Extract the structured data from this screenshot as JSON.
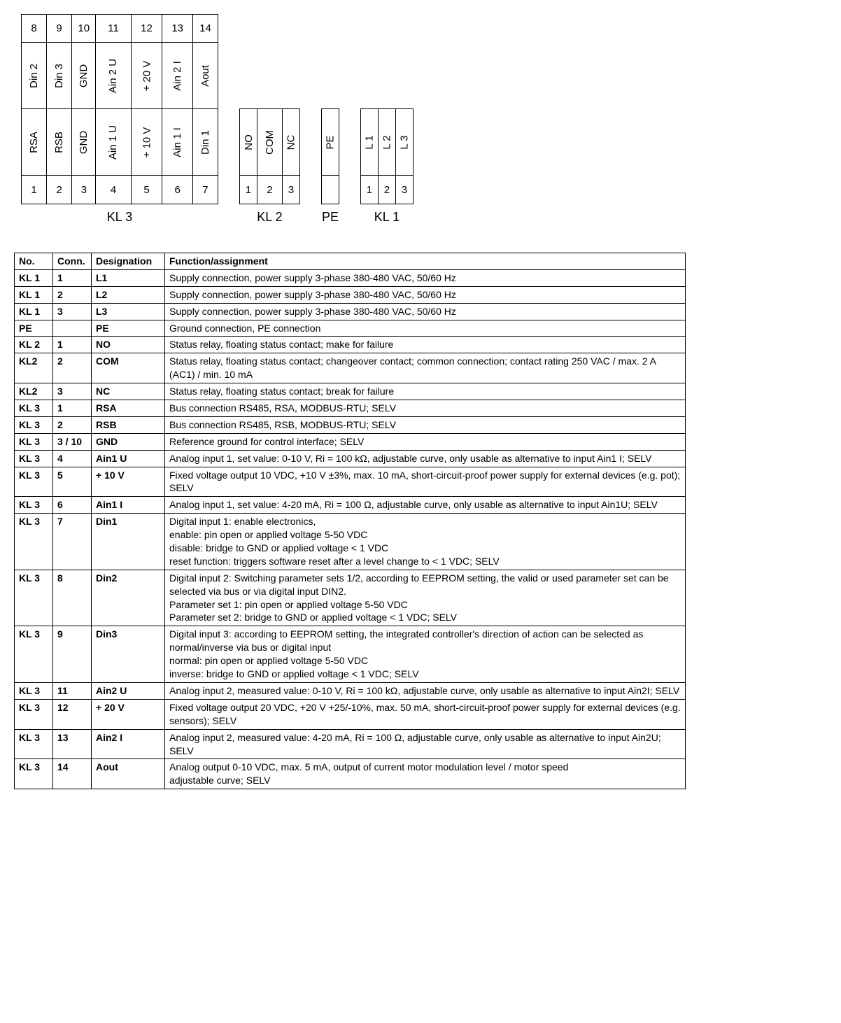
{
  "diagram": {
    "kl3": {
      "label": "KL 3",
      "left_nums": [
        "1",
        "2",
        "3",
        "4",
        "5",
        "6",
        "7"
      ],
      "left_lbls": [
        "RSA",
        "RSB",
        "GND",
        "Ain 1 U",
        "+ 10 V",
        "Ain 1 I",
        "Din 1"
      ],
      "right_lbls": [
        "Din 2",
        "Din 3",
        "GND",
        "Ain 2 U",
        "+ 20 V",
        "Ain 2 I",
        "Aout"
      ],
      "right_nums": [
        "8",
        "9",
        "10",
        "11",
        "12",
        "13",
        "14"
      ]
    },
    "kl2": {
      "label": "KL 2",
      "nums": [
        "1",
        "2",
        "3"
      ],
      "lbls": [
        "NO",
        "COM",
        "NC"
      ]
    },
    "pe": {
      "label": "PE",
      "lbl": "PE"
    },
    "kl1": {
      "label": "KL 1",
      "nums": [
        "1",
        "2",
        "3"
      ],
      "lbls": [
        "L 1",
        "L 2",
        "L 3"
      ]
    }
  },
  "table": {
    "headers": {
      "no": "No.",
      "conn": "Conn.",
      "desig": "Designation",
      "func": "Function/assignment"
    },
    "rows": [
      {
        "no": "KL 1",
        "conn": "1",
        "desig": "L1",
        "func": "Supply connection, power supply 3-phase 380-480 VAC, 50/60 Hz"
      },
      {
        "no": "KL 1",
        "conn": "2",
        "desig": "L2",
        "func": "Supply connection, power supply 3-phase 380-480 VAC, 50/60 Hz"
      },
      {
        "no": "KL 1",
        "conn": "3",
        "desig": "L3",
        "func": "Supply connection, power supply 3-phase 380-480 VAC, 50/60 Hz"
      },
      {
        "no": "PE",
        "conn": "",
        "desig": "PE",
        "func": "Ground connection, PE connection"
      },
      {
        "no": "KL 2",
        "conn": "1",
        "desig": "NO",
        "func": "Status relay, floating status contact; make for failure"
      },
      {
        "no": "KL2",
        "conn": "2",
        "desig": "COM",
        "func": "Status relay, floating status contact; changeover contact; common connection; contact rating 250 VAC / max. 2 A (AC1) / min. 10 mA"
      },
      {
        "no": "KL2",
        "conn": "3",
        "desig": "NC",
        "func": "Status relay, floating status contact; break for failure"
      },
      {
        "no": "KL 3",
        "conn": "1",
        "desig": "RSA",
        "func": "Bus connection RS485, RSA, MODBUS-RTU; SELV"
      },
      {
        "no": "KL 3",
        "conn": "2",
        "desig": "RSB",
        "func": "Bus connection RS485, RSB, MODBUS-RTU; SELV"
      },
      {
        "no": "KL 3",
        "conn": "3 / 10",
        "desig": "GND",
        "func": "Reference ground for control interface; SELV"
      },
      {
        "no": "KL 3",
        "conn": "4",
        "desig": "Ain1 U",
        "func": "Analog input 1, set value: 0-10 V, Ri = 100 kΩ, adjustable curve, only usable as alternative to input Ain1 I; SELV"
      },
      {
        "no": "KL 3",
        "conn": "5",
        "desig": "+ 10 V",
        "func": "Fixed voltage output 10 VDC, +10 V ±3%, max. 10 mA, short-circuit-proof power supply for external devices (e.g. pot); SELV"
      },
      {
        "no": "KL 3",
        "conn": "6",
        "desig": "Ain1 I",
        "func": "Analog input 1, set value: 4-20 mA, Ri = 100 Ω, adjustable curve, only usable as alternative to input Ain1U; SELV"
      },
      {
        "no": "KL 3",
        "conn": "7",
        "desig": "Din1",
        "func": "Digital input 1: enable electronics,\nenable: pin open or applied voltage 5-50 VDC\ndisable: bridge to GND or applied voltage < 1 VDC\nreset function: triggers software reset after a level change to < 1 VDC; SELV"
      },
      {
        "no": "KL 3",
        "conn": "8",
        "desig": "Din2",
        "func": "Digital input 2: Switching parameter sets 1/2, according to EEPROM setting, the valid or used parameter set can be selected via bus or via digital input DIN2.\nParameter set 1: pin open or applied voltage 5-50 VDC\nParameter set 2: bridge to GND or applied voltage < 1 VDC; SELV"
      },
      {
        "no": "KL 3",
        "conn": "9",
        "desig": "Din3",
        "func": "Digital input 3: according to EEPROM setting, the integrated controller's direction of action can be selected as normal/inverse via bus or digital input\nnormal: pin open or applied voltage 5-50 VDC\ninverse: bridge to GND or applied voltage < 1 VDC; SELV"
      },
      {
        "no": "KL 3",
        "conn": "11",
        "desig": "Ain2 U",
        "func": "Analog input 2, measured value: 0-10 V, Ri = 100 kΩ, adjustable curve, only usable as alternative to input Ain2I; SELV"
      },
      {
        "no": "KL 3",
        "conn": "12",
        "desig": "+ 20 V",
        "func": "Fixed voltage output 20 VDC, +20 V +25/-10%, max. 50 mA, short-circuit-proof power supply for external devices (e.g. sensors); SELV"
      },
      {
        "no": "KL 3",
        "conn": "13",
        "desig": "Ain2 I",
        "func": "Analog input 2, measured value: 4-20 mA, Ri = 100 Ω, adjustable curve, only usable as alternative to input Ain2U; SELV"
      },
      {
        "no": "KL 3",
        "conn": "14",
        "desig": "Aout",
        "func": "Analog output 0-10 VDC, max. 5 mA, output of current motor modulation level / motor speed\nadjustable curve; SELV"
      }
    ]
  }
}
